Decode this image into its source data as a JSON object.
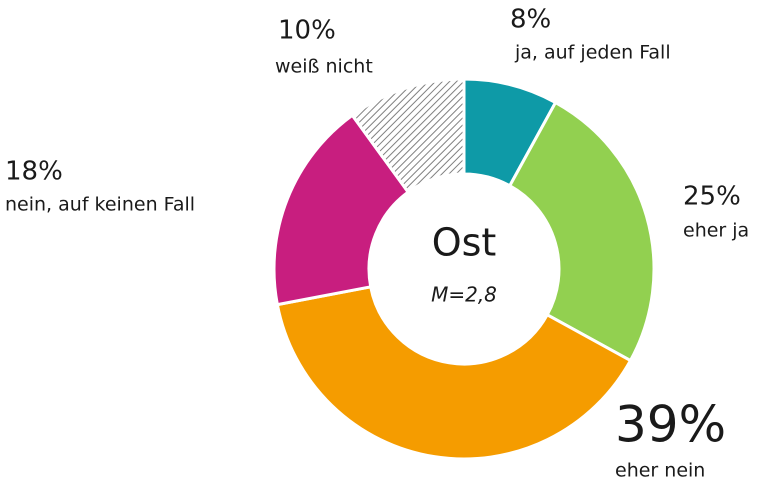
{
  "chart_data": {
    "type": "donut",
    "center_title": "Ost",
    "center_subtitle": "M=2,8",
    "categories": [
      "ja, auf jeden Fall",
      "eher ja",
      "eher nein",
      "nein, auf keinen Fall",
      "weiß nicht"
    ],
    "values": [
      8,
      25,
      39,
      18,
      10
    ],
    "value_labels": [
      "8%",
      "25%",
      "39%",
      "18%",
      "10%"
    ],
    "colors": [
      "#0e9aa7",
      "#92d050",
      "#f59c00",
      "#c81e7f",
      "#808080"
    ],
    "hatched": [
      false,
      false,
      false,
      false,
      true
    ]
  }
}
